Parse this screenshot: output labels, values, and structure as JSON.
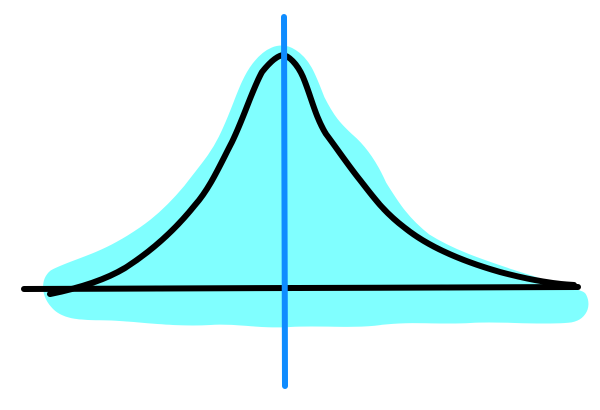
{
  "colors": {
    "background": "#ffffff",
    "fill": "#80ffff",
    "curve": "#000000",
    "baseline": "#000000",
    "vertical_line": "#0f8cff"
  },
  "drawing": {
    "elements": [
      {
        "name": "shaded-area-under-curve",
        "color": "fill"
      },
      {
        "name": "bell-curve-line",
        "color": "curve"
      },
      {
        "name": "horizontal-baseline",
        "color": "baseline"
      },
      {
        "name": "vertical-center-line",
        "color": "vertical_line"
      }
    ]
  }
}
